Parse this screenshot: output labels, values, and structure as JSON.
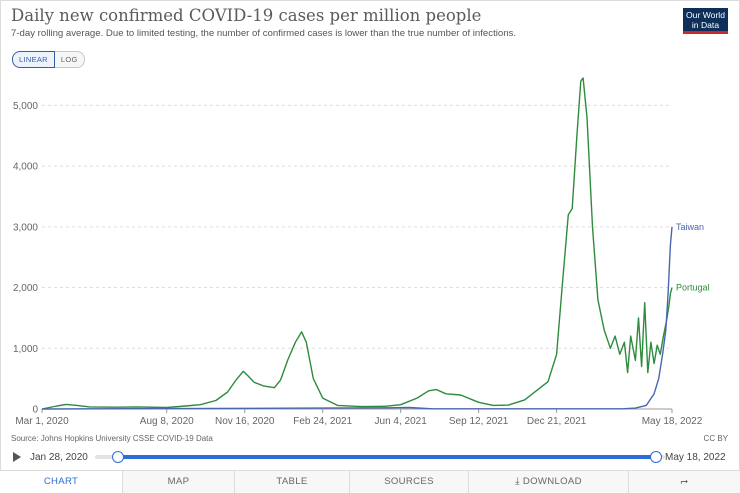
{
  "header": {
    "title": "Daily new confirmed COVID-19 cases per million people",
    "subtitle": "7-day rolling average. Due to limited testing, the number of confirmed cases is lower than the true number of infections.",
    "logo_line1": "Our World",
    "logo_line2": "in Data"
  },
  "scale_toggle": {
    "linear_label": "LINEAR",
    "log_label": "LOG",
    "selected": "LINEAR"
  },
  "chart_data": {
    "type": "line",
    "title": "Daily new confirmed COVID-19 cases per million people",
    "xlabel": "",
    "ylabel": "",
    "ylim": [
      0,
      5500
    ],
    "yticks": [
      0,
      1000,
      2000,
      3000,
      4000,
      5000
    ],
    "ytick_labels": [
      "0",
      "1,000",
      "2,000",
      "3,000",
      "4,000",
      "5,000"
    ],
    "xlim": [
      "2020-01-28",
      "2022-05-18"
    ],
    "xticks": [
      "2020-03-01",
      "2020-08-08",
      "2020-11-16",
      "2021-02-24",
      "2021-06-04",
      "2021-09-12",
      "2021-12-21",
      "2022-05-18"
    ],
    "xtick_labels": [
      "Mar 1, 2020",
      "Aug 8, 2020",
      "Nov 16, 2020",
      "Feb 24, 2021",
      "Jun 4, 2021",
      "Sep 12, 2021",
      "Dec 21, 2021",
      "May 18, 2022"
    ],
    "grid": "horizontal dashed",
    "series": [
      {
        "name": "Portugal",
        "color": "#2e8b3e",
        "points": [
          [
            "2020-03-01",
            0
          ],
          [
            "2020-03-20",
            50
          ],
          [
            "2020-04-01",
            75
          ],
          [
            "2020-04-15",
            60
          ],
          [
            "2020-05-01",
            35
          ],
          [
            "2020-06-01",
            30
          ],
          [
            "2020-07-01",
            35
          ],
          [
            "2020-08-08",
            25
          ],
          [
            "2020-09-01",
            50
          ],
          [
            "2020-09-20",
            70
          ],
          [
            "2020-10-10",
            140
          ],
          [
            "2020-10-25",
            280
          ],
          [
            "2020-11-05",
            480
          ],
          [
            "2020-11-14",
            620
          ],
          [
            "2020-11-20",
            550
          ],
          [
            "2020-11-28",
            440
          ],
          [
            "2020-12-10",
            380
          ],
          [
            "2020-12-24",
            350
          ],
          [
            "2021-01-01",
            480
          ],
          [
            "2021-01-10",
            800
          ],
          [
            "2021-01-20",
            1100
          ],
          [
            "2021-01-28",
            1270
          ],
          [
            "2021-02-03",
            1100
          ],
          [
            "2021-02-12",
            500
          ],
          [
            "2021-02-24",
            180
          ],
          [
            "2021-03-15",
            60
          ],
          [
            "2021-04-15",
            40
          ],
          [
            "2021-05-15",
            45
          ],
          [
            "2021-06-04",
            70
          ],
          [
            "2021-06-25",
            180
          ],
          [
            "2021-07-10",
            300
          ],
          [
            "2021-07-20",
            320
          ],
          [
            "2021-08-01",
            250
          ],
          [
            "2021-08-20",
            230
          ],
          [
            "2021-09-12",
            110
          ],
          [
            "2021-10-01",
            60
          ],
          [
            "2021-10-20",
            65
          ],
          [
            "2021-11-10",
            150
          ],
          [
            "2021-11-25",
            300
          ],
          [
            "2021-12-10",
            450
          ],
          [
            "2021-12-21",
            900
          ],
          [
            "2021-12-28",
            2000
          ],
          [
            "2022-01-05",
            3200
          ],
          [
            "2022-01-10",
            3300
          ],
          [
            "2022-01-16",
            4500
          ],
          [
            "2022-01-21",
            5400
          ],
          [
            "2022-01-24",
            5450
          ],
          [
            "2022-01-29",
            4800
          ],
          [
            "2022-02-05",
            3000
          ],
          [
            "2022-02-12",
            1800
          ],
          [
            "2022-02-20",
            1300
          ],
          [
            "2022-02-28",
            1000
          ],
          [
            "2022-03-06",
            1200
          ],
          [
            "2022-03-12",
            900
          ],
          [
            "2022-03-18",
            1100
          ],
          [
            "2022-03-22",
            600
          ],
          [
            "2022-03-26",
            1200
          ],
          [
            "2022-04-01",
            800
          ],
          [
            "2022-04-05",
            1500
          ],
          [
            "2022-04-09",
            700
          ],
          [
            "2022-04-13",
            1750
          ],
          [
            "2022-04-17",
            600
          ],
          [
            "2022-04-21",
            1100
          ],
          [
            "2022-04-25",
            750
          ],
          [
            "2022-04-29",
            1050
          ],
          [
            "2022-05-03",
            900
          ],
          [
            "2022-05-07",
            1200
          ],
          [
            "2022-05-11",
            1450
          ],
          [
            "2022-05-14",
            1700
          ],
          [
            "2022-05-16",
            1900
          ],
          [
            "2022-05-18",
            2000
          ]
        ]
      },
      {
        "name": "Taiwan",
        "color": "#4a66ad",
        "points": [
          [
            "2020-03-01",
            0
          ],
          [
            "2021-05-20",
            20
          ],
          [
            "2021-06-15",
            25
          ],
          [
            "2021-07-15",
            3
          ],
          [
            "2022-03-15",
            3
          ],
          [
            "2022-04-01",
            15
          ],
          [
            "2022-04-15",
            60
          ],
          [
            "2022-04-25",
            250
          ],
          [
            "2022-05-01",
            500
          ],
          [
            "2022-05-06",
            900
          ],
          [
            "2022-05-10",
            1300
          ],
          [
            "2022-05-13",
            1900
          ],
          [
            "2022-05-16",
            2700
          ],
          [
            "2022-05-18",
            3000
          ]
        ]
      }
    ]
  },
  "footer": {
    "source": "Source: Johns Hopkins University CSSE COVID-19 Data",
    "license": "CC BY"
  },
  "timeline": {
    "start_label": "Jan 28, 2020",
    "end_label": "May 18, 2022",
    "selected_start": "2020-01-28",
    "selected_end": "2022-05-18"
  },
  "tabs": {
    "chart": "CHART",
    "map": "MAP",
    "table": "TABLE",
    "sources": "SOURCES",
    "download": "DOWNLOAD",
    "selected": "CHART"
  },
  "colors": {
    "accent": "#2b6fd6",
    "portugal": "#2e8b3e",
    "taiwan": "#4a66ad"
  }
}
